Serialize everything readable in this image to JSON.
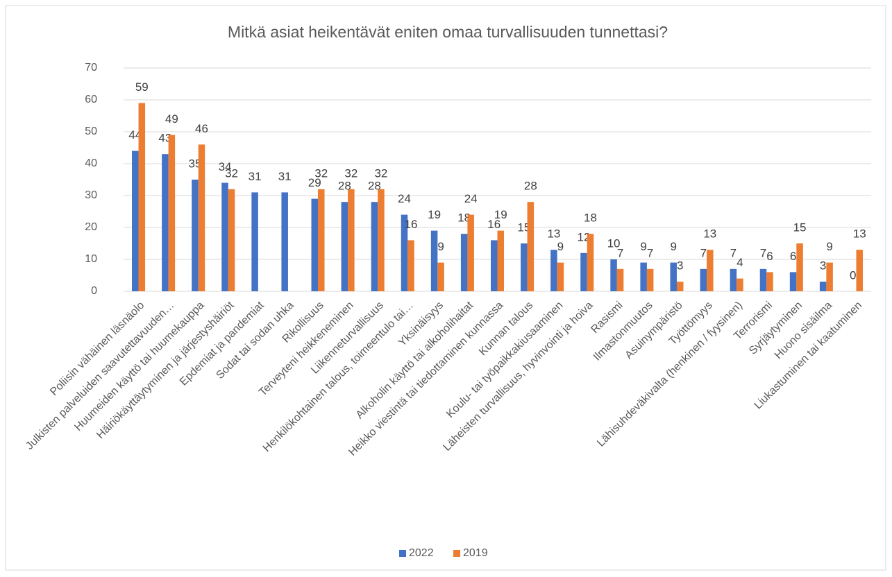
{
  "chart_data": {
    "type": "bar",
    "title": "Mitkä asiat heikentävät eniten omaa turvallisuuden tunnettasi?",
    "categories": [
      "Poliisin vähäinen läsnäolo",
      "Julkisten palveluiden saavutettavuuden…",
      "Huumeiden käyttö tai huumekauppa",
      "Häiriökäyttäytyminen ja järjestyshäiriöt",
      "Epdemiat ja pandemiat",
      "Sodat tai sodan uhka",
      "Rikollisuus",
      "Terveyteni heikkeneminen",
      "Liikenneturvallisuus",
      "Henkilökohtainen talous, toimeentulo tai…",
      "Yksinäisyys",
      "Alkoholin käyttö tai alkoholihaitat",
      "Heikko viestintä tai tiedottaminen kunnassa",
      "Kunnan talous",
      "Koulu- tai työpaikkakiusaaminen",
      "Läheisten turvallisuus, hyvinvointi ja hoiva",
      "Rasismi",
      "Ilmastonmuutos",
      "Asuinympäristö",
      "Työttömyys",
      "Lähisuhdeväkivalta (henkinen / fyysinen)",
      "Terrorismi",
      "Syrjäytyminen",
      "Huono sisäilma",
      "Liukastuminen tai kaatuminen"
    ],
    "series": [
      {
        "name": "2022",
        "color": "#4472c4",
        "values": [
          44,
          43,
          35,
          34,
          31,
          31,
          29,
          28,
          28,
          24,
          19,
          18,
          16,
          15,
          13,
          12,
          10,
          9,
          9,
          7,
          7,
          7,
          6,
          3,
          0
        ]
      },
      {
        "name": "2019",
        "color": "#ed7d31",
        "values": [
          59,
          49,
          46,
          32,
          null,
          null,
          32,
          32,
          32,
          16,
          9,
          24,
          19,
          28,
          9,
          18,
          7,
          7,
          3,
          13,
          4,
          6,
          15,
          9,
          13
        ]
      }
    ],
    "ylim": [
      0,
      70
    ],
    "yticks": [
      0,
      10,
      20,
      30,
      40,
      50,
      60,
      70
    ],
    "grid": true,
    "legend": "bottom"
  }
}
